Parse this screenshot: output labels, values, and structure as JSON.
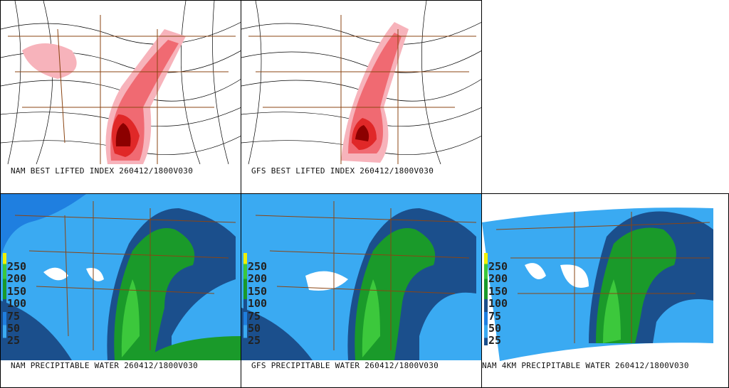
{
  "panels": [
    {
      "caption": "NAM BEST LIFTED INDEX 260412/1800V030"
    },
    {
      "caption": "GFS BEST LIFTED INDEX 260412/1800V030"
    },
    {
      "caption": "NAM PRECIPITABLE WATER 260412/1800V030"
    },
    {
      "caption": "GFS PRECIPITABLE WATER 260412/1800V030"
    },
    {
      "caption": "NAM 4KM PRECIPITABLE WATER 260412/1800V030"
    }
  ],
  "legend": {
    "labels": [
      "250",
      "200",
      "150",
      "100",
      "75",
      "50",
      "25"
    ]
  },
  "colors": {
    "li_light": "#f7b3bb",
    "li_mid": "#f06a72",
    "li_strong": "#e02828",
    "li_dark": "#8c0000",
    "pw_navy": "#1b4f8c",
    "pw_blue": "#1f7fe0",
    "pw_light": "#3aaaf2",
    "pw_green": "#1a9a2a",
    "pw_lgreen": "#3cc83c",
    "border": "#8b4513"
  }
}
